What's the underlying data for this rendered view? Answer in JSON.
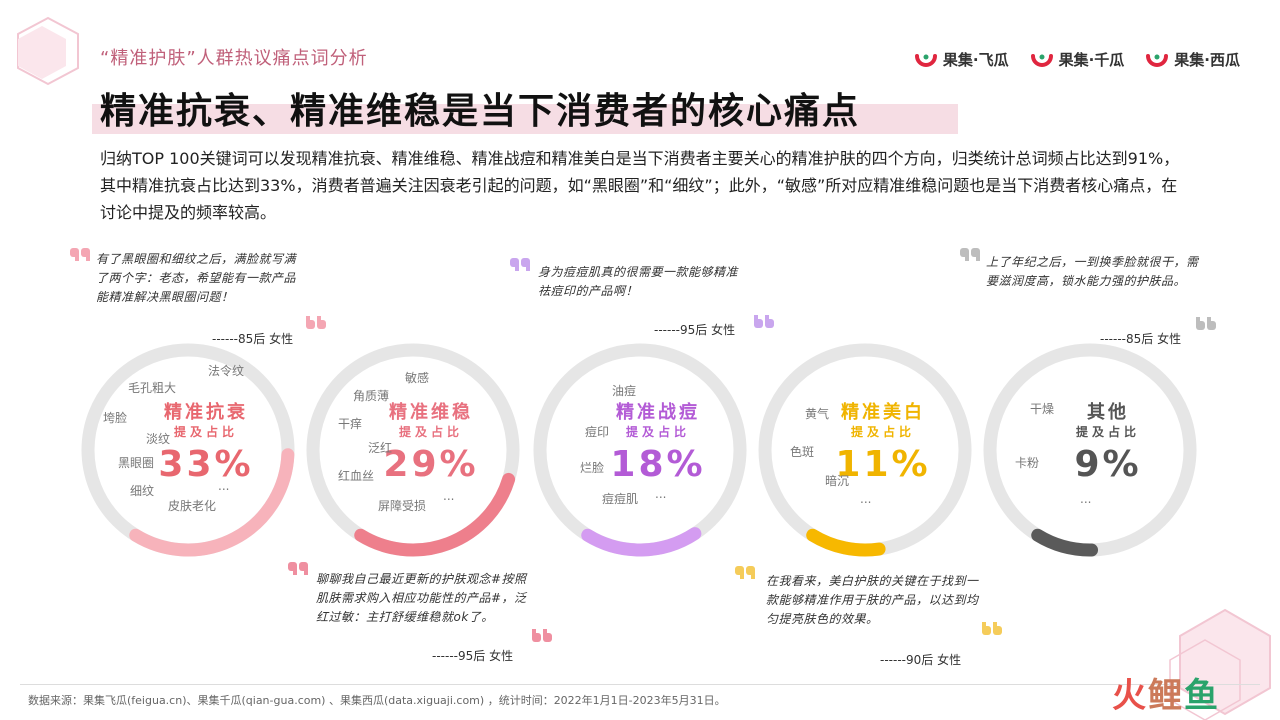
{
  "header": {
    "section_title": "“精准护肤”人群热议痛点词分析",
    "headline": "精准抗衰、精准维稳是当下消费者的核心痛点",
    "description": "归纳TOP 100关键词可以发现精准抗衰、精准维稳、精准战痘和精准美白是当下消费者主要关心的精准护肤的四个方向，归类统计总词频占比达到91%，其中精准抗衰占比达到33%，消费者普遍关注因衰老引起的问题，如“黑眼圈”和“细纹”；此外，“敏感”所对应精准维稳问题也是当下消费者核心痛点，在讨论中提及的频率较高。"
  },
  "brands": [
    {
      "label": "果集·飞瓜",
      "icon": "melon-logo-icon"
    },
    {
      "label": "果集·千瓜",
      "icon": "melon-logo-icon"
    },
    {
      "label": "果集·西瓜",
      "icon": "melon-logo-icon"
    }
  ],
  "quotes": [
    {
      "text": "有了黑眼圈和细纹之后，满脸就写满了两个字：老态，希望能有一款产品能精准解决黑眼圈问题！",
      "author": "------85后 女性",
      "color": "#f4a6b3"
    },
    {
      "text": "身为痘痘肌真的很需要一款能够精准祛痘印的产品啊！",
      "author": "------95后 女性",
      "color": "#c9a6ee"
    },
    {
      "text": "上了年纪之后，一到换季脸就很干，需要滋润度高，锁水能力强的护肤品。",
      "author": "------85后 女性",
      "color": "#bdbdbd"
    },
    {
      "text": "聊聊我自己最近更新的护肤观念#按照肌肤需求购入相应功能性的产品#，泛红过敏：主打舒缓维稳就ok了。",
      "author": "------95后 女性",
      "color": "#ef8fa0"
    },
    {
      "text": "在我看来，美白护肤的关键在于找到一款能够精准作用于肤的产品，以达到均匀提亮肤色的效果。",
      "author": "------90后 女性",
      "color": "#f5cc5a"
    }
  ],
  "sub_label": "提及占比",
  "chart_data": {
    "type": "donut",
    "unit": "%",
    "items": [
      {
        "name": "精准抗衰",
        "value": 33,
        "label": "33%",
        "color": "#e8676f",
        "ring_color": "#f7b3bb",
        "keywords": [
          "法令纹",
          "毛孔粗大",
          "垮脸",
          "淡纹",
          "黑眼圈",
          "细纹",
          "皮肤老化",
          "..."
        ]
      },
      {
        "name": "精准维稳",
        "value": 29,
        "label": "29%",
        "color": "#e8717f",
        "ring_color": "#ee7f8c",
        "keywords": [
          "敏感",
          "角质薄",
          "干痒",
          "泛红",
          "红血丝",
          "屏障受损",
          "..."
        ]
      },
      {
        "name": "精准战痘",
        "value": 18,
        "label": "18%",
        "color": "#b35bd6",
        "ring_color": "#d49cf1",
        "keywords": [
          "油痘",
          "痘印",
          "烂脸",
          "痘痘肌",
          "..."
        ]
      },
      {
        "name": "精准美白",
        "value": 11,
        "label": "11%",
        "color": "#f0b400",
        "ring_color": "#f7b800",
        "keywords": [
          "黄气",
          "色斑",
          "暗沉",
          "..."
        ]
      },
      {
        "name": "其他",
        "value": 9,
        "label": "9%",
        "color": "#555555",
        "ring_color": "#5a5a5a",
        "keywords": [
          "干燥",
          "卡粉",
          "..."
        ]
      }
    ],
    "track_color": "#e6e6e6"
  },
  "footer": {
    "source": "数据来源：果集飞瓜(feigua.cn)、果集千瓜(qian-gua.com) 、果集西瓜(data.xiguaji.com) ，统计时间：2022年1月1日-2023年5月31日。",
    "watermark": [
      "火",
      "鲤",
      "鱼"
    ]
  }
}
